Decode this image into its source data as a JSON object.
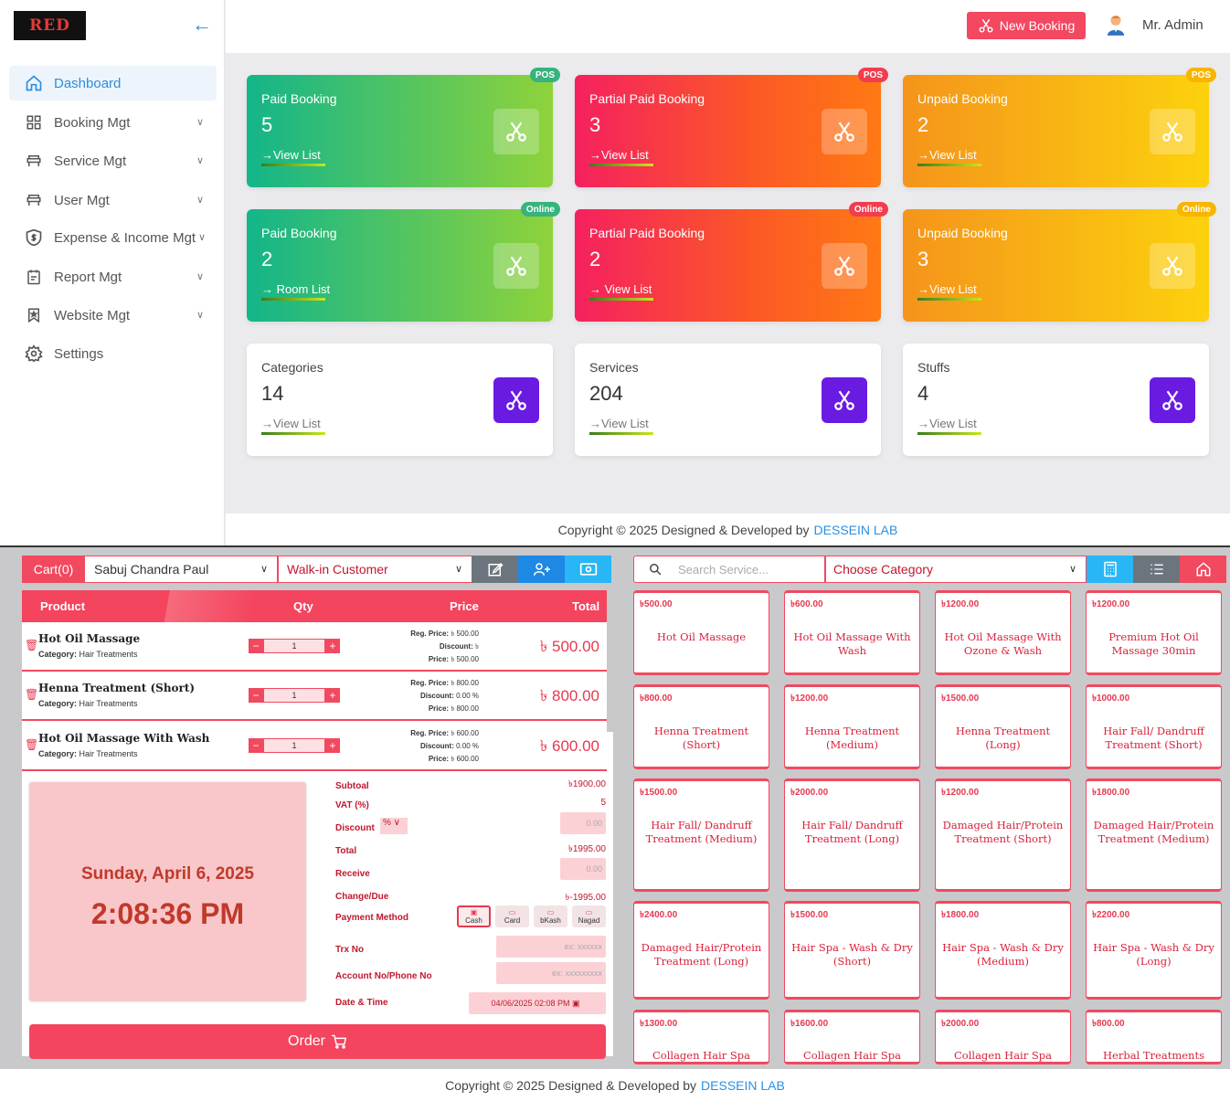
{
  "app": {
    "logo_text": "RED"
  },
  "sidebar": {
    "items": [
      {
        "label": "Dashboard",
        "icon": "home-icon"
      },
      {
        "label": "Booking Mgt",
        "icon": "grid-icon"
      },
      {
        "label": "Service Mgt",
        "icon": "bench-icon"
      },
      {
        "label": "User Mgt",
        "icon": "bench-icon"
      },
      {
        "label": "Expense & Income Mgt",
        "icon": "shield-dollar-icon"
      },
      {
        "label": "Report Mgt",
        "icon": "report-icon"
      },
      {
        "label": "Website Mgt",
        "icon": "bookmark-icon"
      },
      {
        "label": "Settings",
        "icon": "gear-icon"
      }
    ]
  },
  "header": {
    "new_booking": "New Booking",
    "admin_name": "Mr. Admin"
  },
  "cards": [
    {
      "title": "Paid Booking",
      "value": "5",
      "link": "→View List",
      "badge": "POS"
    },
    {
      "title": "Partial Paid Booking",
      "value": "3",
      "link": "→View List",
      "badge": "POS"
    },
    {
      "title": "Unpaid Booking",
      "value": "2",
      "link": "→View List",
      "badge": "POS"
    },
    {
      "title": "Paid Booking",
      "value": "2",
      "link": "→ Room List",
      "badge": "Online"
    },
    {
      "title": "Partial Paid Booking",
      "value": "2",
      "link": "→ View List",
      "badge": "Online"
    },
    {
      "title": "Unpaid Booking",
      "value": "3",
      "link": "→View List",
      "badge": "Online"
    },
    {
      "title": "Categories",
      "value": "14",
      "link": "→View List"
    },
    {
      "title": "Services",
      "value": "204",
      "link": "→View List"
    },
    {
      "title": "Stuffs",
      "value": "4",
      "link": "→View List"
    }
  ],
  "footer": {
    "text": "Copyright © 2025 Designed & Developed by",
    "brand": "DESSEIN LAB"
  },
  "pos": {
    "cart_label": "Cart(0)",
    "staff": "Sabuj Chandra Paul",
    "customer": "Walk-in Customer",
    "search_placeholder": "Search Service...",
    "category_placeholder": "Choose Category",
    "table_headers": {
      "product": "Product",
      "qty": "Qty",
      "price": "Price",
      "total": "Total"
    },
    "cart_items": [
      {
        "name": "Hot Oil Massage",
        "category_label": "Category:",
        "category": "Hair Treatments",
        "qty": "1",
        "reg_label": "Reg. Price:",
        "reg": "৳ 500.00",
        "disc_label": "Discount:",
        "disc": "৳",
        "price_label": "Price:",
        "price": "৳ 500.00",
        "total": "৳ 500.00"
      },
      {
        "name": "Henna Treatment (Short)",
        "category_label": "Category:",
        "category": "Hair Treatments",
        "qty": "1",
        "reg_label": "Reg. Price:",
        "reg": "৳ 800.00",
        "disc_label": "Discount:",
        "disc": "0.00 %",
        "price_label": "Price:",
        "price": "৳ 800.00",
        "total": "৳ 800.00"
      },
      {
        "name": "Hot Oil Massage With Wash",
        "category_label": "Category:",
        "category": "Hair Treatments",
        "qty": "1",
        "reg_label": "Reg. Price:",
        "reg": "৳ 600.00",
        "disc_label": "Discount:",
        "disc": "0.00 %",
        "price_label": "Price:",
        "price": "৳ 600.00",
        "total": "৳ 600.00"
      }
    ],
    "clock": {
      "date": "Sunday, April 6, 2025",
      "time": "2:08:36 PM"
    },
    "summary": {
      "subtotal_label": "Subtoal",
      "subtotal": "৳1900.00",
      "vat_label": "VAT (%)",
      "vat": "5",
      "discount_label": "Discount",
      "discount_type": "%",
      "discount_value": "0.00",
      "total_label": "Total",
      "total": "৳1995.00",
      "receive_label": "Receive",
      "receive": "0.00",
      "change_label": "Change/Due",
      "change": "৳-1995.00",
      "payment_label": "Payment Method",
      "payment_methods": [
        "Cash",
        "Card",
        "bKash",
        "Nagad"
      ],
      "trx_label": "Trx No",
      "trx_placeholder": "ex: xxxxxx",
      "account_label": "Account No/Phone No",
      "account_placeholder": "ex: xxxxxxxxx",
      "datetime_label": "Date & Time",
      "datetime": "04/06/2025 02:08 PM"
    },
    "order_label": "Order",
    "services": [
      {
        "price": "৳500.00",
        "name": "Hot Oil Massage"
      },
      {
        "price": "৳600.00",
        "name": "Hot Oil Massage With Wash"
      },
      {
        "price": "৳1200.00",
        "name": "Hot Oil Massage With Ozone & Wash"
      },
      {
        "price": "৳1200.00",
        "name": "Premium Hot Oil Massage 30min"
      },
      {
        "price": "৳800.00",
        "name": "Henna Treatment (Short)"
      },
      {
        "price": "৳1200.00",
        "name": "Henna Treatment (Medium)"
      },
      {
        "price": "৳1500.00",
        "name": "Henna Treatment (Long)"
      },
      {
        "price": "৳1000.00",
        "name": "Hair Fall/ Dandruff Treatment (Short)"
      },
      {
        "price": "৳1500.00",
        "name": "Hair Fall/ Dandruff Treatment (Medium)"
      },
      {
        "price": "৳2000.00",
        "name": "Hair Fall/ Dandruff Treatment (Long)"
      },
      {
        "price": "৳1200.00",
        "name": "Damaged Hair/Protein Treatment (Short)"
      },
      {
        "price": "৳1800.00",
        "name": "Damaged Hair/Protein Treatment (Medium)"
      },
      {
        "price": "৳2400.00",
        "name": "Damaged Hair/Protein Treatment (Long)"
      },
      {
        "price": "৳1500.00",
        "name": "Hair Spa - Wash & Dry (Short)"
      },
      {
        "price": "৳1800.00",
        "name": "Hair Spa - Wash & Dry (Medium)"
      },
      {
        "price": "৳2200.00",
        "name": "Hair Spa - Wash & Dry (Long)"
      },
      {
        "price": "৳1300.00",
        "name": "Collagen Hair Spa"
      },
      {
        "price": "৳1600.00",
        "name": "Collagen Hair Spa"
      },
      {
        "price": "৳2000.00",
        "name": "Collagen Hair Spa"
      },
      {
        "price": "৳800.00",
        "name": "Herbal Treatments"
      }
    ]
  },
  "colors": {
    "accent": "#2b8fe0",
    "pos_red": "#f1495f",
    "purple": "#6a1be2"
  }
}
